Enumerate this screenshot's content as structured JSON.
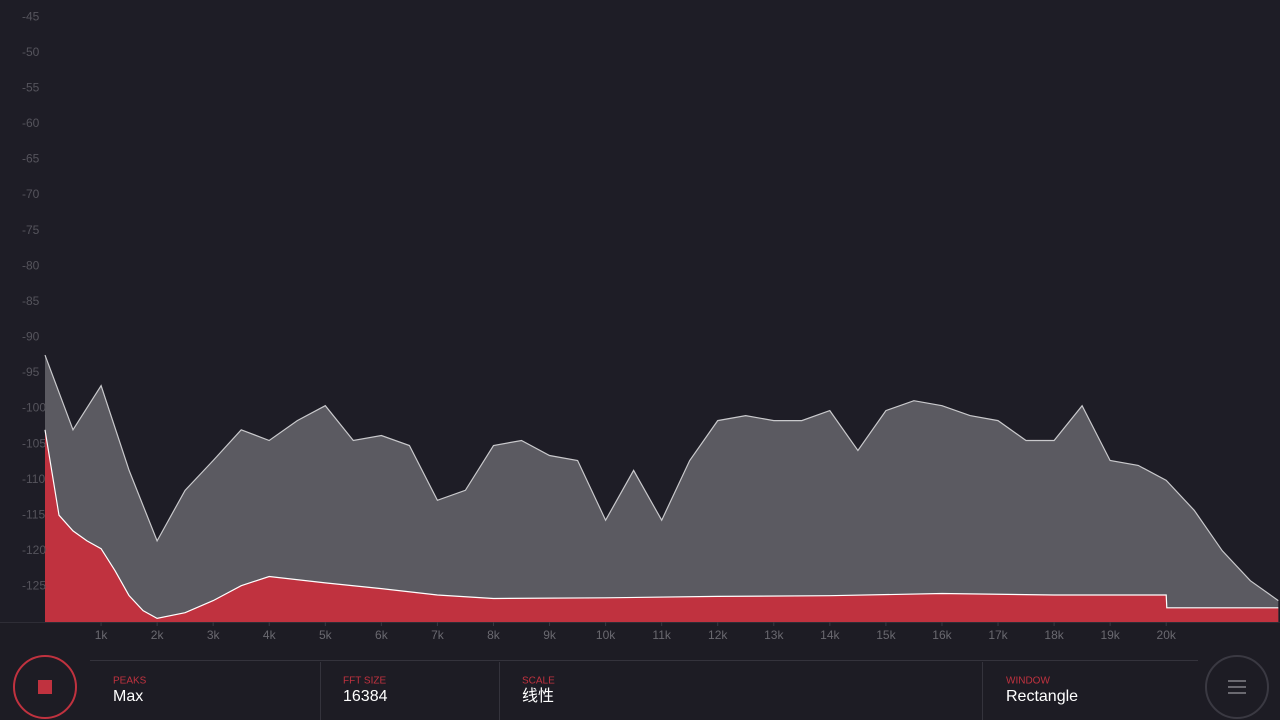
{
  "chart_data": {
    "type": "area",
    "xlim": [
      0,
      22030
    ],
    "ylim": [
      -130,
      -42.6
    ],
    "xticks": [
      {
        "value": 1000,
        "label": "1k"
      },
      {
        "value": 2000,
        "label": "2k"
      },
      {
        "value": 3000,
        "label": "3k"
      },
      {
        "value": 4000,
        "label": "4k"
      },
      {
        "value": 5000,
        "label": "5k"
      },
      {
        "value": 6000,
        "label": "6k"
      },
      {
        "value": 7000,
        "label": "7k"
      },
      {
        "value": 8000,
        "label": "8k"
      },
      {
        "value": 9000,
        "label": "9k"
      },
      {
        "value": 10000,
        "label": "10k"
      },
      {
        "value": 11000,
        "label": "11k"
      },
      {
        "value": 12000,
        "label": "12k"
      },
      {
        "value": 13000,
        "label": "13k"
      },
      {
        "value": 14000,
        "label": "14k"
      },
      {
        "value": 15000,
        "label": "15k"
      },
      {
        "value": 16000,
        "label": "16k"
      },
      {
        "value": 17000,
        "label": "17k"
      },
      {
        "value": 18000,
        "label": "18k"
      },
      {
        "value": 19000,
        "label": "19k"
      },
      {
        "value": 20000,
        "label": "20k"
      }
    ],
    "yticks": [
      -45,
      -50,
      -55,
      -60,
      -65,
      -70,
      -75,
      -80,
      -85,
      -90,
      -95,
      -100,
      -105,
      -110,
      -115,
      -120,
      -125
    ],
    "series": [
      {
        "color": "#5b5a61",
        "line_color": "#c9c9cc",
        "x": [
          0,
          500,
          1000,
          1500,
          2000,
          2500,
          3000,
          3500,
          4000,
          4500,
          5000,
          5500,
          6000,
          6500,
          7000,
          7500,
          8000,
          8500,
          9000,
          9500,
          10000,
          10500,
          11000,
          11500,
          12000,
          12500,
          13000,
          13500,
          14000,
          14500,
          15000,
          15500,
          16000,
          16500,
          17000,
          17500,
          18000,
          18500,
          19000,
          19500,
          20000,
          20500,
          21000,
          21500,
          22000
        ],
        "values": [
          -92.5,
          -103,
          -96.8,
          -108.7,
          -118.6,
          -111.5,
          -107.3,
          -103,
          -104.5,
          -101.7,
          -99.6,
          -104.5,
          -103.8,
          -105.2,
          -112.9,
          -111.5,
          -105.2,
          -104.5,
          -106.6,
          -107.3,
          -115.7,
          -108.7,
          -115.7,
          -107.3,
          -101.7,
          -101,
          -101.7,
          -101.7,
          -100.3,
          -105.9,
          -100.3,
          -98.9,
          -99.6,
          -101,
          -101.7,
          -104.5,
          -104.5,
          -99.6,
          -107.3,
          -108,
          -110.1,
          -114.3,
          -120,
          -124.2,
          -127
        ]
      },
      {
        "color": "#c0323f",
        "line_color": "#ffffff",
        "x": [
          0,
          250,
          500,
          750,
          1000,
          1250,
          1500,
          1750,
          2000,
          2500,
          3000,
          3500,
          4000,
          5000,
          6000,
          7000,
          8000,
          10000,
          12000,
          14000,
          16000,
          18000,
          20000,
          20010,
          22000
        ],
        "values": [
          -103,
          -115,
          -117.2,
          -118.6,
          -119.7,
          -122.8,
          -126.3,
          -128.4,
          -129.5,
          -128.7,
          -127,
          -124.9,
          -123.6,
          -124.5,
          -125.3,
          -126.2,
          -126.7,
          -126.6,
          -126.4,
          -126.3,
          -126,
          -126.2,
          -126.2,
          -128,
          -128
        ]
      }
    ]
  },
  "controls": [
    {
      "label": "PEAKS",
      "value": "Max"
    },
    {
      "label": "FFT SIZE",
      "value": "16384"
    },
    {
      "label": "SCALE",
      "value": "线性"
    },
    {
      "label": "WINDOW",
      "value": "Rectangle"
    }
  ]
}
